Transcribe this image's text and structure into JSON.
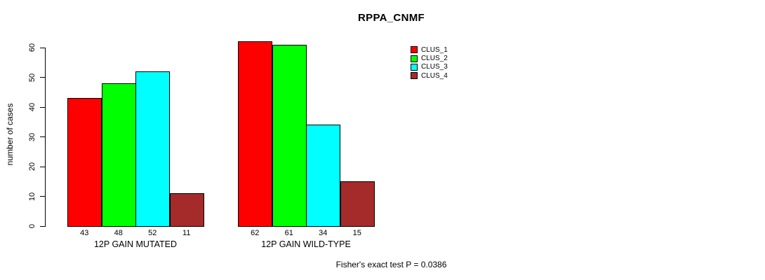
{
  "title": "RPPA_CNMF",
  "chart_data": {
    "type": "bar",
    "title": "RPPA_CNMF",
    "xlabel": "",
    "ylabel": "number of cases",
    "categories": [
      "12P GAIN MUTATED",
      "12P GAIN WILD-TYPE"
    ],
    "series": [
      {
        "name": "CLUS_1",
        "color": "#FF0000",
        "values": [
          43,
          62
        ]
      },
      {
        "name": "CLUS_2",
        "color": "#00FF00",
        "values": [
          48,
          61
        ]
      },
      {
        "name": "CLUS_3",
        "color": "#00FFFF",
        "values": [
          52,
          34
        ]
      },
      {
        "name": "CLUS_4",
        "color": "#A52A2A",
        "values": [
          11,
          15
        ]
      }
    ],
    "ylim": [
      0,
      65
    ],
    "yticks": [
      0,
      10,
      20,
      30,
      40,
      50,
      60
    ],
    "bar_value_labels": true,
    "grid": false,
    "legend": {
      "position": "right-top",
      "entries": [
        "CLUS_1",
        "CLUS_2",
        "CLUS_3",
        "CLUS_4"
      ]
    },
    "annotation": "Fisher's exact test P = 0.0386"
  }
}
